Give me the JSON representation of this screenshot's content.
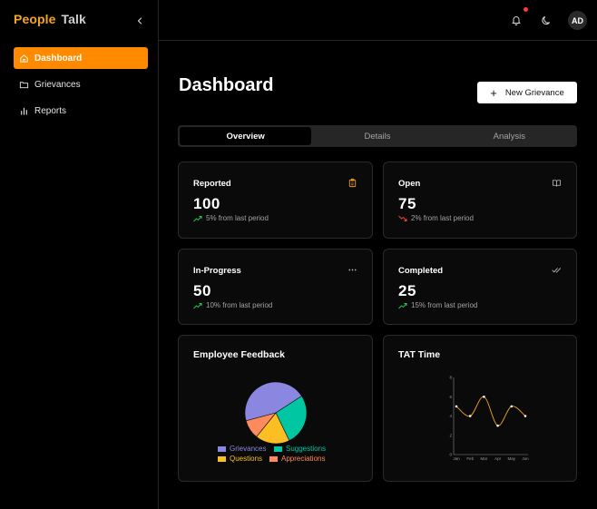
{
  "brand": {
    "part1": "People",
    "part2": "Talk"
  },
  "sidebar": {
    "items": [
      {
        "label": "Dashboard",
        "icon": "home-icon",
        "active": true
      },
      {
        "label": "Grievances",
        "icon": "folder-icon",
        "active": false
      },
      {
        "label": "Reports",
        "icon": "bar-chart-icon",
        "active": false
      }
    ]
  },
  "topbar": {
    "avatar_initials": "AD"
  },
  "main": {
    "title": "Dashboard",
    "new_button_label": "New Grievance",
    "tabs": [
      {
        "label": "Overview",
        "active": true
      },
      {
        "label": "Details",
        "active": false
      },
      {
        "label": "Analysis",
        "active": false
      }
    ]
  },
  "stats": [
    {
      "label": "Reported",
      "value": "100",
      "trend": "5% from last period",
      "direction": "up",
      "icon": "clipboard-icon"
    },
    {
      "label": "Open",
      "value": "75",
      "trend": "2% from last period",
      "direction": "down",
      "icon": "book-open-icon"
    },
    {
      "label": "In-Progress",
      "value": "50",
      "trend": "10% from last period",
      "direction": "up",
      "icon": "ellipsis-icon"
    },
    {
      "label": "Completed",
      "value": "25",
      "trend": "15% from last period",
      "direction": "up",
      "icon": "double-check-icon"
    }
  ],
  "colors": {
    "accent": "#ff8a00",
    "up": "#22c55e",
    "down": "#ef4444",
    "stat_icon_reported": "#f59e0b",
    "line": "#f0a020"
  },
  "chart_data": [
    {
      "type": "pie",
      "title": "Employee Feedback",
      "categories": [
        "Grievances",
        "Suggestions",
        "Questions",
        "Appreciations"
      ],
      "values": [
        45,
        27,
        18,
        10
      ],
      "colors": [
        "#8b87e0",
        "#00c7a1",
        "#fbbf24",
        "#ff8a5c"
      ]
    },
    {
      "type": "line",
      "title": "TAT Time",
      "categories": [
        "Jan",
        "Feb",
        "Mar",
        "Apr",
        "May",
        "Jun"
      ],
      "values": [
        5,
        4,
        6,
        3,
        5,
        4
      ],
      "ylim": [
        0,
        8
      ],
      "yticks": [
        "0",
        "2",
        "4",
        "6",
        "8"
      ]
    }
  ]
}
